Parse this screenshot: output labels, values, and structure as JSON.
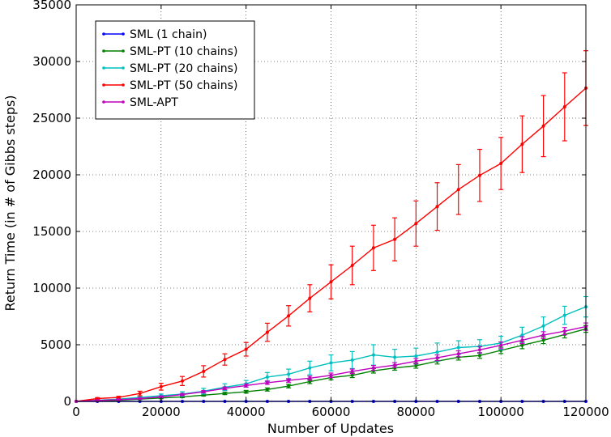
{
  "chart_data": {
    "type": "line",
    "title": "",
    "xlabel": "Number of Updates",
    "ylabel": "Return Time (in # of Gibbs steps)",
    "xlim": [
      0,
      120000
    ],
    "ylim": [
      0,
      35000
    ],
    "xticks": [
      0,
      20000,
      40000,
      60000,
      80000,
      100000,
      120000
    ],
    "yticks": [
      0,
      5000,
      10000,
      15000,
      20000,
      25000,
      30000,
      35000
    ],
    "grid": true,
    "legend_position": "top-left",
    "x": [
      0,
      5000,
      10000,
      15000,
      20000,
      25000,
      30000,
      35000,
      40000,
      45000,
      50000,
      55000,
      60000,
      65000,
      70000,
      75000,
      80000,
      85000,
      90000,
      95000,
      100000,
      105000,
      110000,
      115000,
      120000
    ],
    "series": [
      {
        "name": "SML (1 chain)",
        "color": "#0000ff",
        "values": [
          0,
          0,
          0,
          0,
          0,
          0,
          0,
          0,
          0,
          0,
          0,
          0,
          0,
          0,
          0,
          0,
          0,
          0,
          0,
          0,
          0,
          0,
          0,
          0,
          0
        ],
        "errors": [
          0,
          0,
          0,
          0,
          0,
          0,
          0,
          0,
          0,
          0,
          0,
          0,
          0,
          0,
          0,
          0,
          0,
          0,
          0,
          0,
          0,
          0,
          0,
          0,
          0
        ]
      },
      {
        "name": "SML-PT (10 chains)",
        "color": "#008000",
        "values": [
          0,
          50,
          100,
          200,
          300,
          400,
          550,
          700,
          850,
          1050,
          1350,
          1750,
          2100,
          2300,
          2700,
          2950,
          3150,
          3550,
          3900,
          4050,
          4500,
          4950,
          5400,
          5900,
          6400
        ],
        "errors": [
          0,
          20,
          30,
          40,
          60,
          70,
          80,
          100,
          120,
          140,
          160,
          180,
          200,
          200,
          200,
          200,
          220,
          250,
          250,
          250,
          280,
          300,
          300,
          300,
          300
        ]
      },
      {
        "name": "SML-PT (20 chains)",
        "color": "#00bfbf",
        "values": [
          0,
          100,
          200,
          350,
          500,
          650,
          900,
          1250,
          1550,
          2150,
          2400,
          2950,
          3400,
          3650,
          4100,
          3900,
          4000,
          4350,
          4750,
          4850,
          5150,
          5850,
          6650,
          7600,
          8350
        ],
        "errors": [
          0,
          50,
          80,
          100,
          150,
          200,
          250,
          300,
          300,
          400,
          450,
          600,
          700,
          750,
          900,
          700,
          700,
          800,
          600,
          600,
          600,
          700,
          800,
          800,
          900
        ]
      },
      {
        "name": "SML-PT (50 chains)",
        "color": "#ff0000",
        "values": [
          0,
          250,
          350,
          700,
          1300,
          1800,
          2650,
          3700,
          4600,
          6100,
          7550,
          9100,
          10550,
          12000,
          13550,
          14300,
          15700,
          17200,
          18700,
          19950,
          21000,
          22700,
          24300,
          26000,
          27650
        ],
        "errors": [
          0,
          80,
          100,
          200,
          300,
          400,
          500,
          500,
          600,
          800,
          900,
          1200,
          1500,
          1700,
          2000,
          1900,
          2000,
          2100,
          2200,
          2300,
          2300,
          2500,
          2700,
          3000,
          3300
        ]
      },
      {
        "name": "SML-APT",
        "color": "#bf00bf",
        "values": [
          0,
          80,
          150,
          250,
          400,
          600,
          850,
          1150,
          1400,
          1650,
          1850,
          2050,
          2300,
          2650,
          2950,
          3200,
          3550,
          3850,
          4200,
          4550,
          4950,
          5400,
          5850,
          6200,
          6600
        ],
        "errors": [
          0,
          30,
          40,
          50,
          80,
          90,
          100,
          120,
          140,
          150,
          160,
          180,
          200,
          200,
          220,
          220,
          240,
          250,
          260,
          280,
          300,
          300,
          300,
          320,
          320
        ]
      }
    ]
  }
}
